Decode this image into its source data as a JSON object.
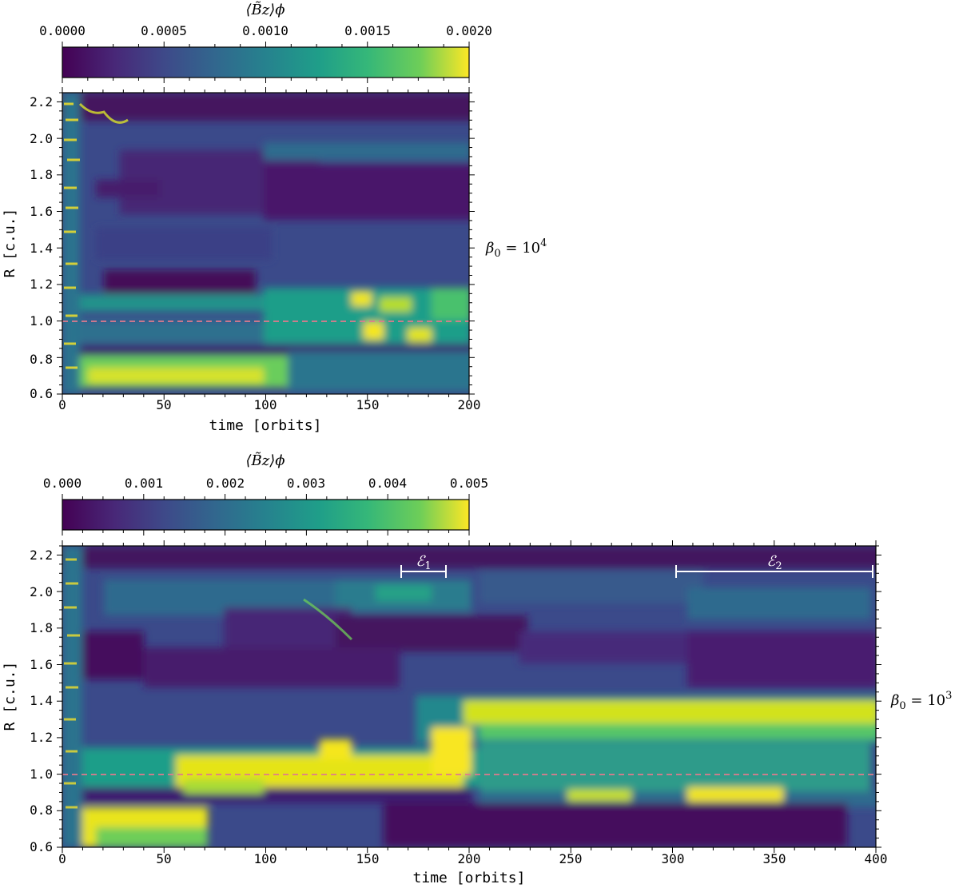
{
  "chart_data": [
    {
      "type": "heatmap",
      "colormap": "viridis",
      "xlabel": "time [orbits]",
      "ylabel": "R [c.u.]",
      "xlim": [
        0,
        200
      ],
      "ylim": [
        0.6,
        2.25
      ],
      "x_ticks": [
        "0",
        "50",
        "100",
        "150",
        "200"
      ],
      "y_ticks": [
        "0.6",
        "0.8",
        "1.0",
        "1.2",
        "1.4",
        "1.6",
        "1.8",
        "2.0",
        "2.2"
      ],
      "colorbar": {
        "label": "⟨B̃z⟩ϕ",
        "range": [
          0,
          0.002
        ],
        "ticks": [
          "0.0000",
          "0.0005",
          "0.0010",
          "0.0015",
          "0.0020"
        ]
      },
      "reference_line": {
        "y": 1.0,
        "style": "dashed",
        "color": "#e07a8c"
      },
      "side_label": {
        "base": "β",
        "sub": "0",
        "eq": " = 10",
        "sup": "4"
      },
      "features": [
        {
          "r": 1.2,
          "t0": 25,
          "t1": 95,
          "value": 0.0001,
          "note": "dark band"
        },
        {
          "r": 1.0,
          "t0": 110,
          "t1": 200,
          "value": 0.0019,
          "note": "bright blobs"
        },
        {
          "r": 0.7,
          "t0": 0,
          "t1": 90,
          "value": 0.0018,
          "note": "bright band"
        }
      ]
    },
    {
      "type": "heatmap",
      "colormap": "viridis",
      "xlabel": "time [orbits]",
      "ylabel": "R [c.u.]",
      "xlim": [
        0,
        400
      ],
      "ylim": [
        0.6,
        2.25
      ],
      "x_ticks": [
        "0",
        "50",
        "100",
        "150",
        "200",
        "250",
        "300",
        "350",
        "400"
      ],
      "y_ticks": [
        "0.6",
        "0.8",
        "1.0",
        "1.2",
        "1.4",
        "1.6",
        "1.8",
        "2.0",
        "2.2"
      ],
      "colorbar": {
        "label": "⟨B̃z⟩ϕ",
        "range": [
          0,
          0.005
        ],
        "ticks": [
          "0.000",
          "0.001",
          "0.002",
          "0.003",
          "0.004",
          "0.005"
        ]
      },
      "reference_line": {
        "y": 1.0,
        "style": "dashed",
        "color": "#e07a8c"
      },
      "side_label": {
        "base": "β",
        "sub": "0",
        "eq": " = 10",
        "sup": "3"
      },
      "intervals": [
        {
          "label": "ℰ",
          "sub": "1",
          "t0": 167,
          "t1": 189,
          "r": 2.12
        },
        {
          "label": "ℰ",
          "sub": "2",
          "t0": 302,
          "t1": 399,
          "r": 2.12
        }
      ],
      "features": [
        {
          "r": 1.0,
          "t0": 80,
          "t1": 195,
          "value": 0.0048,
          "note": "bright band"
        },
        {
          "r": 1.2,
          "t0": 200,
          "t1": 400,
          "value": 0.0045,
          "note": "bright band"
        },
        {
          "r": 0.88,
          "t0": 300,
          "t1": 360,
          "value": 0.0045,
          "note": "bright streak"
        }
      ]
    }
  ]
}
